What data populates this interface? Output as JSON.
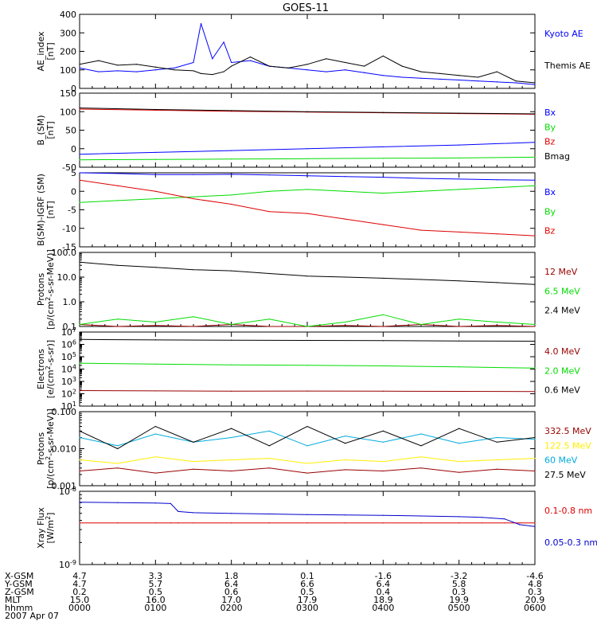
{
  "title": "GOES-11",
  "date_label": "2007 Apr 07",
  "footer": {
    "rows": [
      {
        "label": "X-GSM",
        "values": [
          "4.7",
          "3.3",
          "1.8",
          "0.1",
          "-1.6",
          "-3.2",
          "-4.6"
        ]
      },
      {
        "label": "Y-GSM",
        "values": [
          "4.7",
          "5.7",
          "6.4",
          "6.6",
          "6.4",
          "5.8",
          "4.8"
        ]
      },
      {
        "label": "Z-GSM",
        "values": [
          "0.2",
          "0.5",
          "0.6",
          "0.5",
          "0.4",
          "0.3",
          "0.3"
        ]
      },
      {
        "label": "MLT",
        "values": [
          "15.0",
          "16.0",
          "17.0",
          "17.9",
          "18.9",
          "19.9",
          "20.9"
        ]
      },
      {
        "label": "hhmm",
        "values": [
          "0000",
          "0100",
          "0200",
          "0300",
          "0400",
          "0500",
          "0600"
        ]
      }
    ]
  },
  "chart_data": [
    {
      "type": "line",
      "ylabel": [
        "AE_index",
        "[nT]"
      ],
      "ylim": [
        0,
        400
      ],
      "yscale": "linear",
      "yticks": [
        0,
        100,
        200,
        300,
        400
      ],
      "x": [
        0,
        0.25,
        0.5,
        0.75,
        1.0,
        1.25,
        1.5,
        1.6,
        1.75,
        1.9,
        2.0,
        2.25,
        2.5,
        2.75,
        3.0,
        3.25,
        3.5,
        3.75,
        4.0,
        4.25,
        4.5,
        4.75,
        5.0,
        5.25,
        5.5,
        5.75,
        6.0
      ],
      "series": [
        {
          "name": "Kyoto AE",
          "color": "#0000ff",
          "values": [
            110,
            90,
            95,
            90,
            100,
            110,
            140,
            350,
            160,
            250,
            140,
            150,
            120,
            110,
            100,
            90,
            100,
            85,
            70,
            60,
            55,
            50,
            45,
            40,
            35,
            30,
            20
          ]
        },
        {
          "name": "Themis AE",
          "color": "#000000",
          "values": [
            130,
            150,
            125,
            130,
            115,
            100,
            95,
            80,
            75,
            90,
            120,
            170,
            120,
            110,
            130,
            160,
            140,
            120,
            175,
            120,
            90,
            80,
            70,
            60,
            90,
            40,
            30
          ]
        }
      ]
    },
    {
      "type": "line",
      "ylabel": [
        "B_(SM)",
        "[nT]"
      ],
      "ylim": [
        -50,
        150
      ],
      "yscale": "linear",
      "yticks": [
        -50,
        0,
        50,
        100,
        150
      ],
      "x": [
        0,
        1,
        2,
        3,
        4,
        5,
        6
      ],
      "series": [
        {
          "name": "Bx",
          "color": "#0000ff",
          "values": [
            -15,
            -10,
            -5,
            0,
            5,
            10,
            17
          ]
        },
        {
          "name": "By",
          "color": "#00dd00",
          "values": [
            -30,
            -29,
            -28,
            -27,
            -26,
            -25,
            -23
          ]
        },
        {
          "name": "Bz",
          "color": "#dd0000",
          "values": [
            107,
            104,
            101,
            99,
            97,
            95,
            93
          ]
        },
        {
          "name": "Bmag",
          "color": "#000000",
          "values": [
            110,
            106,
            103,
            100,
            98,
            96,
            94
          ]
        }
      ]
    },
    {
      "type": "line",
      "ylabel": [
        "B(SM)-IGRF (SM)",
        "[nT]"
      ],
      "ylim": [
        -15,
        5
      ],
      "yscale": "linear",
      "yticks": [
        -15,
        -10,
        -5,
        0,
        5
      ],
      "x": [
        0,
        0.5,
        1.0,
        1.5,
        2.0,
        2.5,
        3.0,
        3.5,
        4.0,
        4.5,
        5.0,
        5.5,
        6.0
      ],
      "series": [
        {
          "name": "Bx",
          "color": "#0000ff",
          "values": [
            5,
            4.8,
            4.5,
            4.5,
            4.6,
            4.4,
            4.2,
            4.0,
            3.8,
            3.5,
            3.3,
            3.1,
            3.0
          ]
        },
        {
          "name": "By",
          "color": "#00dd00",
          "values": [
            -3,
            -2.5,
            -2,
            -1.5,
            -1,
            0,
            0.5,
            0,
            -0.5,
            0,
            0.5,
            1,
            1.5
          ]
        },
        {
          "name": "Bz",
          "color": "#dd0000",
          "values": [
            3,
            1.5,
            0,
            -2,
            -3.5,
            -5.5,
            -6,
            -7.5,
            -9,
            -10.5,
            -11,
            -11.5,
            -12
          ]
        }
      ]
    },
    {
      "type": "line",
      "ylabel": [
        "Protons",
        "[p/(cm^2-s-sr-MeV)]"
      ],
      "ylim": [
        0.1,
        100
      ],
      "yscale": "log",
      "yticks": [
        0.1,
        1.0,
        10.0,
        100.0
      ],
      "ytick_labels": [
        "0.1",
        "1.0",
        "10.0",
        "100.0"
      ],
      "x": [
        0,
        0.5,
        1.0,
        1.5,
        2.0,
        2.5,
        3.0,
        3.5,
        4.0,
        4.5,
        5.0,
        5.5,
        6.0
      ],
      "series": [
        {
          "name": "12 MeV",
          "color": "#990000",
          "values": [
            0.12,
            0.1,
            0.11,
            0.1,
            0.12,
            0.1,
            0.1,
            0.11,
            0.1,
            0.12,
            0.1,
            0.11,
            0.1
          ]
        },
        {
          "name": "6.5 MeV",
          "color": "#00dd00",
          "values": [
            0.12,
            0.2,
            0.15,
            0.25,
            0.12,
            0.2,
            0.1,
            0.15,
            0.3,
            0.12,
            0.2,
            0.15,
            0.12
          ]
        },
        {
          "name": "2.4 MeV",
          "color": "#000000",
          "values": [
            40,
            30,
            25,
            20,
            18,
            14,
            11,
            10,
            9,
            8,
            7,
            6,
            5
          ]
        }
      ]
    },
    {
      "type": "line",
      "ylabel": [
        "Electrons",
        "[e/(cm^2-s-sr)]"
      ],
      "ylim": [
        10,
        10000000
      ],
      "yscale": "log",
      "yticks": [
        10,
        100,
        1000,
        10000,
        100000,
        1000000,
        10000000
      ],
      "ytick_labels": [
        "10^1",
        "10^2",
        "10^3",
        "10^4",
        "10^5",
        "10^6",
        "10^7"
      ],
      "x": [
        0,
        1,
        2,
        3,
        4,
        5,
        6
      ],
      "series": [
        {
          "name": "4.0 MeV",
          "color": "#990000",
          "values": [
            180,
            170,
            160,
            165,
            160,
            155,
            150
          ]
        },
        {
          "name": "2.0 MeV",
          "color": "#00dd00",
          "values": [
            30000,
            25000,
            22000,
            20000,
            18000,
            15000,
            12000
          ]
        },
        {
          "name": "0.6 MeV",
          "color": "#000000",
          "values": [
            2500000,
            2300000,
            2200000,
            2100000,
            2000000,
            1900000,
            1800000
          ]
        }
      ]
    },
    {
      "type": "line",
      "ylabel": [
        "Protons",
        "[p/(cm^2-s-sr-MeV)]"
      ],
      "ylim": [
        0.001,
        0.1
      ],
      "yscale": "log",
      "yticks": [
        0.001,
        0.01,
        0.1
      ],
      "ytick_labels": [
        "0.001",
        "0.010",
        "0.100"
      ],
      "x": [
        0,
        0.5,
        1.0,
        1.5,
        2.0,
        2.5,
        3.0,
        3.5,
        4.0,
        4.5,
        5.0,
        5.5,
        6.0
      ],
      "series": [
        {
          "name": "332.5 MeV",
          "color": "#990000",
          "values": [
            0.0025,
            0.003,
            0.0022,
            0.0028,
            0.0025,
            0.003,
            0.0022,
            0.0027,
            0.0025,
            0.003,
            0.0023,
            0.0028,
            0.0025
          ]
        },
        {
          "name": "122.5 MeV",
          "color": "#ffee00",
          "values": [
            0.005,
            0.004,
            0.006,
            0.0045,
            0.005,
            0.0055,
            0.004,
            0.005,
            0.0045,
            0.006,
            0.0045,
            0.005,
            0.0055
          ]
        },
        {
          "name": "60 MeV",
          "color": "#00aadd",
          "values": [
            0.02,
            0.012,
            0.025,
            0.015,
            0.02,
            0.03,
            0.012,
            0.022,
            0.015,
            0.025,
            0.014,
            0.02,
            0.018
          ]
        },
        {
          "name": "27.5 MeV",
          "color": "#000000",
          "values": [
            0.03,
            0.01,
            0.04,
            0.015,
            0.035,
            0.012,
            0.04,
            0.014,
            0.03,
            0.012,
            0.035,
            0.015,
            0.02
          ]
        }
      ]
    },
    {
      "type": "line",
      "ylabel": [
        "Xray Flux",
        "[W/m^2]"
      ],
      "ylim": [
        1e-09,
        1e-08
      ],
      "yscale": "log",
      "yticks": [
        1e-09,
        1e-08
      ],
      "ytick_labels": [
        "10^-9",
        "10^-8"
      ],
      "x": [
        0,
        0.5,
        1.0,
        1.2,
        1.3,
        1.5,
        2.0,
        2.5,
        3.0,
        3.5,
        4.0,
        4.5,
        5.0,
        5.3,
        5.6,
        5.8,
        6.0
      ],
      "series": [
        {
          "name": "0.1-0.8 nm",
          "color": "#dd0000",
          "values": [
            3.7e-09,
            3.7e-09,
            3.7e-09,
            3.7e-09,
            3.7e-09,
            3.7e-09,
            3.7e-09,
            3.7e-09,
            3.7e-09,
            3.7e-09,
            3.7e-09,
            3.7e-09,
            3.7e-09,
            3.7e-09,
            3.7e-09,
            3.7e-09,
            3.7e-09
          ]
        },
        {
          "name": "0.05-0.3 nm",
          "color": "#0000cc",
          "values": [
            7.1e-09,
            7e-09,
            6.9e-09,
            6.8e-09,
            5.3e-09,
            5.1e-09,
            5e-09,
            4.9e-09,
            4.8e-09,
            4.75e-09,
            4.7e-09,
            4.6e-09,
            4.5e-09,
            4.4e-09,
            4.2e-09,
            3.5e-09,
            3.3e-09
          ]
        }
      ]
    }
  ]
}
